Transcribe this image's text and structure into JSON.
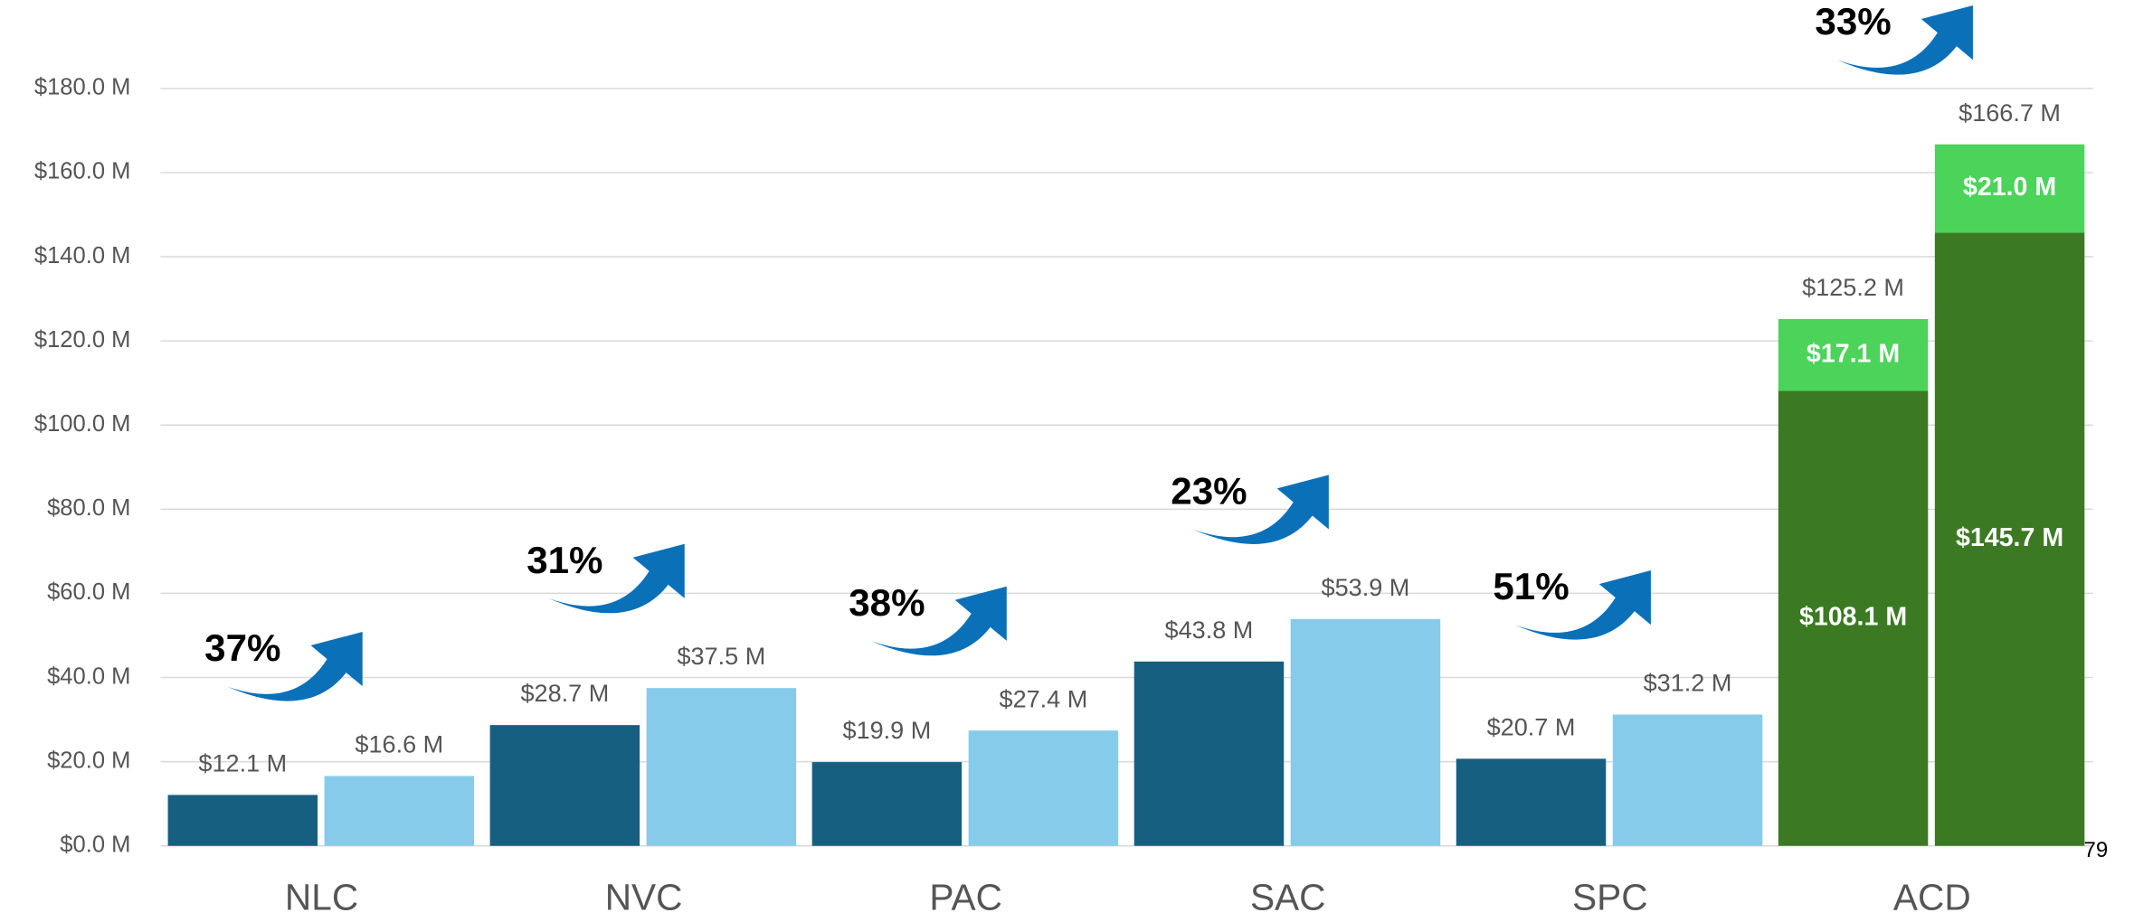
{
  "chart_data": {
    "type": "bar",
    "ylim": [
      0,
      180
    ],
    "yticks": [
      {
        "value": 0,
        "label": "$0.0 M"
      },
      {
        "value": 20,
        "label": "$20.0 M"
      },
      {
        "value": 40,
        "label": "$40.0 M"
      },
      {
        "value": 60,
        "label": "$60.0 M"
      },
      {
        "value": 80,
        "label": "$80.0 M"
      },
      {
        "value": 100,
        "label": "$100.0 M"
      },
      {
        "value": 120,
        "label": "$120.0 M"
      },
      {
        "value": 140,
        "label": "$140.0 M"
      },
      {
        "value": 160,
        "label": "$160.0 M"
      },
      {
        "value": 180,
        "label": "$180.0 M"
      }
    ],
    "grid": true,
    "arrow_color": "#0a70b8",
    "groups": [
      {
        "category": "NLC",
        "growth": {
          "value": 37,
          "label": "37%"
        },
        "bars": [
          {
            "segments": [
              {
                "value": 12.1,
                "value_label": "$12.1 M",
                "color": "#175f81"
              }
            ]
          },
          {
            "segments": [
              {
                "value": 16.6,
                "value_label": "$16.6 M",
                "color": "#87cbea"
              }
            ]
          }
        ]
      },
      {
        "category": "NVC",
        "growth": {
          "value": 31,
          "label": "31%"
        },
        "bars": [
          {
            "segments": [
              {
                "value": 28.7,
                "value_label": "$28.7 M",
                "color": "#175f81"
              }
            ]
          },
          {
            "segments": [
              {
                "value": 37.5,
                "value_label": "$37.5 M",
                "color": "#87cbea"
              }
            ]
          }
        ]
      },
      {
        "category": "PAC",
        "growth": {
          "value": 38,
          "label": "38%"
        },
        "bars": [
          {
            "segments": [
              {
                "value": 19.9,
                "value_label": "$19.9 M",
                "color": "#175f81"
              }
            ]
          },
          {
            "segments": [
              {
                "value": 27.4,
                "value_label": "$27.4 M",
                "color": "#87cbea"
              }
            ]
          }
        ]
      },
      {
        "category": "SAC",
        "growth": {
          "value": 23,
          "label": "23%"
        },
        "bars": [
          {
            "segments": [
              {
                "value": 43.8,
                "value_label": "$43.8 M",
                "color": "#175f81"
              }
            ]
          },
          {
            "segments": [
              {
                "value": 53.9,
                "value_label": "$53.9 M",
                "color": "#87cbea"
              }
            ]
          }
        ]
      },
      {
        "category": "SPC",
        "growth": {
          "value": 51,
          "label": "51%"
        },
        "bars": [
          {
            "segments": [
              {
                "value": 20.7,
                "value_label": "$20.7 M",
                "color": "#175f81"
              }
            ]
          },
          {
            "segments": [
              {
                "value": 31.2,
                "value_label": "$31.2 M",
                "color": "#87cbea"
              }
            ]
          }
        ]
      },
      {
        "category": "ACD",
        "growth": {
          "value": 33,
          "label": "33%"
        },
        "bars": [
          {
            "segments": [
              {
                "value": 108.1,
                "value_label": "$108.1 M",
                "color": "#3b7a23"
              },
              {
                "value": 17.1,
                "value_label": "$17.1 M",
                "color": "#4cd35a"
              }
            ],
            "total": 125.2,
            "total_label": "$125.2 M"
          },
          {
            "segments": [
              {
                "value": 145.7,
                "value_label": "$145.7 M",
                "color": "#3b7a23"
              },
              {
                "value": 21.0,
                "value_label": "$21.0 M",
                "color": "#4cd35a"
              }
            ],
            "total": 166.7,
            "total_label": "$166.7 M"
          }
        ]
      }
    ]
  },
  "page_number": "79"
}
